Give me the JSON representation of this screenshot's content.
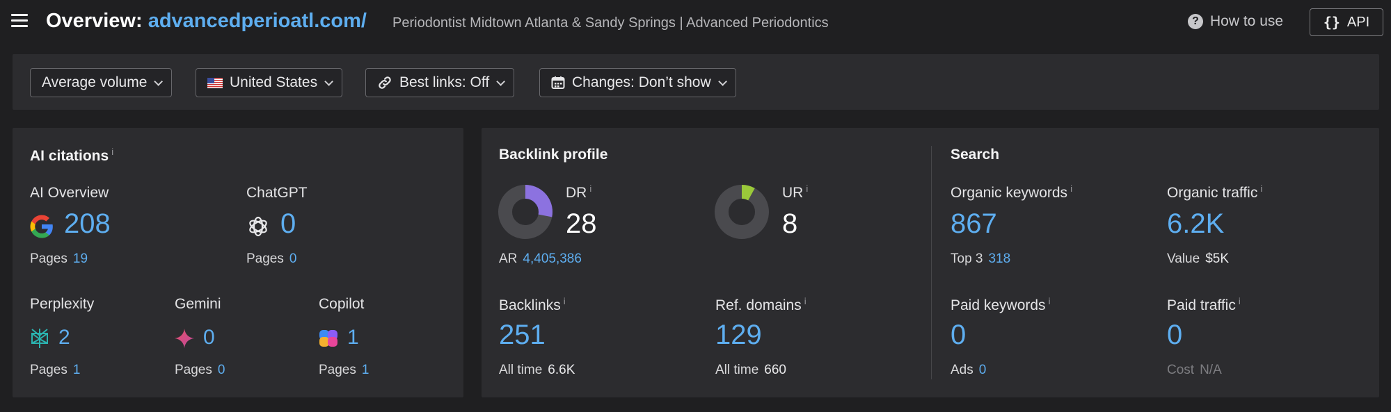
{
  "header": {
    "title_prefix": "Overview:",
    "domain": "advancedperioatl.com/",
    "page_title": "Periodontist Midtown Atlanta & Sandy Springs | Advanced Periodontics",
    "how_to_use": "How to use",
    "api_label": "API",
    "api_braces": "{}"
  },
  "filters": {
    "volume": "Average volume",
    "country": "United States",
    "best_links": "Best links: Off",
    "changes": "Changes: Don’t show"
  },
  "ai_citations": {
    "title": "AI citations",
    "info": "i",
    "ai_overview": {
      "label": "AI Overview",
      "value": "208",
      "pages_label": "Pages",
      "pages": "19",
      "icon": "google-icon"
    },
    "chatgpt": {
      "label": "ChatGPT",
      "value": "0",
      "pages_label": "Pages",
      "pages": "0",
      "icon": "chatgpt-icon"
    },
    "perplexity": {
      "label": "Perplexity",
      "value": "2",
      "pages_label": "Pages",
      "pages": "1",
      "icon": "perplexity-icon"
    },
    "gemini": {
      "label": "Gemini",
      "value": "0",
      "pages_label": "Pages",
      "pages": "0",
      "icon": "gemini-icon"
    },
    "copilot": {
      "label": "Copilot",
      "value": "1",
      "pages_label": "Pages",
      "pages": "1",
      "icon": "copilot-icon"
    }
  },
  "backlink_profile": {
    "title": "Backlink profile",
    "dr": {
      "label": "DR",
      "value": "28",
      "ring_fill": 0.28,
      "color": "#8c72e0"
    },
    "ur": {
      "label": "UR",
      "value": "8",
      "ring_fill": 0.08,
      "color": "#9ac93a"
    },
    "ar": {
      "label": "AR",
      "value": "4,405,386"
    },
    "backlinks": {
      "label": "Backlinks",
      "value": "251",
      "sub_label": "All time",
      "sub_value": "6.6K"
    },
    "ref_domains": {
      "label": "Ref. domains",
      "value": "129",
      "sub_label": "All time",
      "sub_value": "660"
    }
  },
  "search": {
    "title": "Search",
    "organic_keywords": {
      "label": "Organic keywords",
      "value": "867",
      "sub_label": "Top 3",
      "sub_value": "318"
    },
    "organic_traffic": {
      "label": "Organic traffic",
      "value": "6.2K",
      "sub_label": "Value",
      "sub_value": "$5K"
    },
    "paid_keywords": {
      "label": "Paid keywords",
      "value": "0",
      "sub_label": "Ads",
      "sub_value": "0"
    },
    "paid_traffic": {
      "label": "Paid traffic",
      "value": "0",
      "sub_label": "Cost",
      "sub_value": "N/A"
    }
  },
  "colors": {
    "accent": "#5eaef0",
    "background": "#1f1f21",
    "panel": "#2c2c2f"
  }
}
